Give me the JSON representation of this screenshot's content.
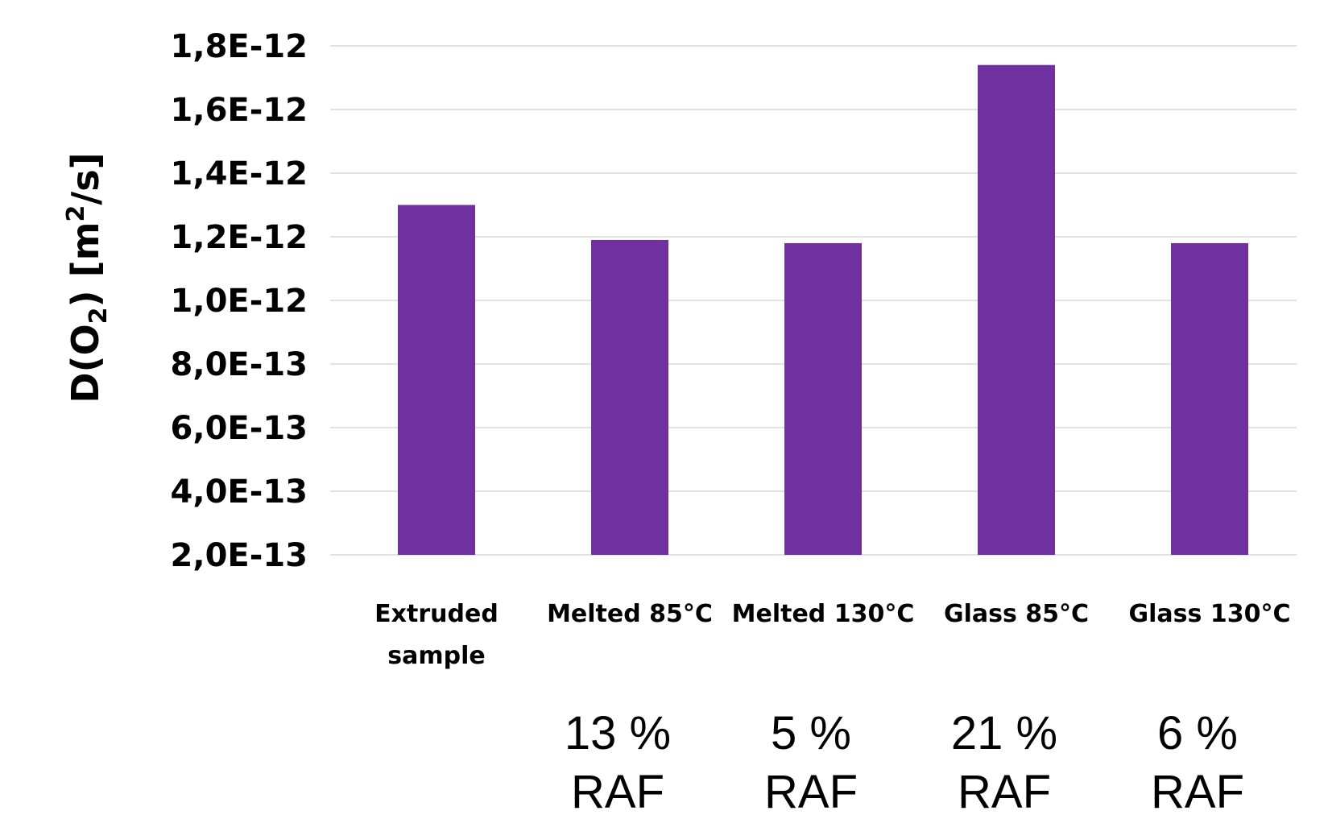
{
  "chart_data": {
    "type": "bar",
    "categories": [
      "Extruded sample",
      "Melted 85°C",
      "Melted 130°C",
      "Glass 85°C",
      "Glass 130°C"
    ],
    "values": [
      1.3e-12,
      1.19e-12,
      1.18e-12,
      1.74e-12,
      1.18e-12
    ],
    "ylim": [
      2e-13,
      1.8e-12
    ],
    "yticks": [
      1.8e-12,
      1.6e-12,
      1.4e-12,
      1.2e-12,
      1e-12,
      8e-13,
      6e-13,
      4e-13,
      2e-13
    ],
    "ytick_labels": [
      "1,8E-12",
      "1,6E-12",
      "1,4E-12",
      "1,2E-12",
      "1,0E-12",
      "8,0E-13",
      "6,0E-13",
      "4,0E-13",
      "2,0E-13"
    ],
    "ylabel": {
      "parts": [
        "D(O",
        "2",
        ") [m",
        "2",
        "/s]"
      ],
      "text": "D(O2) [m2/s]"
    },
    "xlabel": "",
    "title": "",
    "grid": true,
    "legend": "none",
    "bar_color": "#7030a0",
    "grid_color": "#d9d9d9",
    "annotations": [
      {
        "category": "Melted 85°C",
        "lines": [
          "13 %",
          "RAF"
        ]
      },
      {
        "category": "Melted 130°C",
        "lines": [
          "5 %",
          "RAF"
        ]
      },
      {
        "category": "Glass 85°C",
        "lines": [
          "21 %",
          "RAF"
        ]
      },
      {
        "category": "Glass 130°C",
        "lines": [
          "6 %",
          "RAF"
        ]
      }
    ]
  }
}
